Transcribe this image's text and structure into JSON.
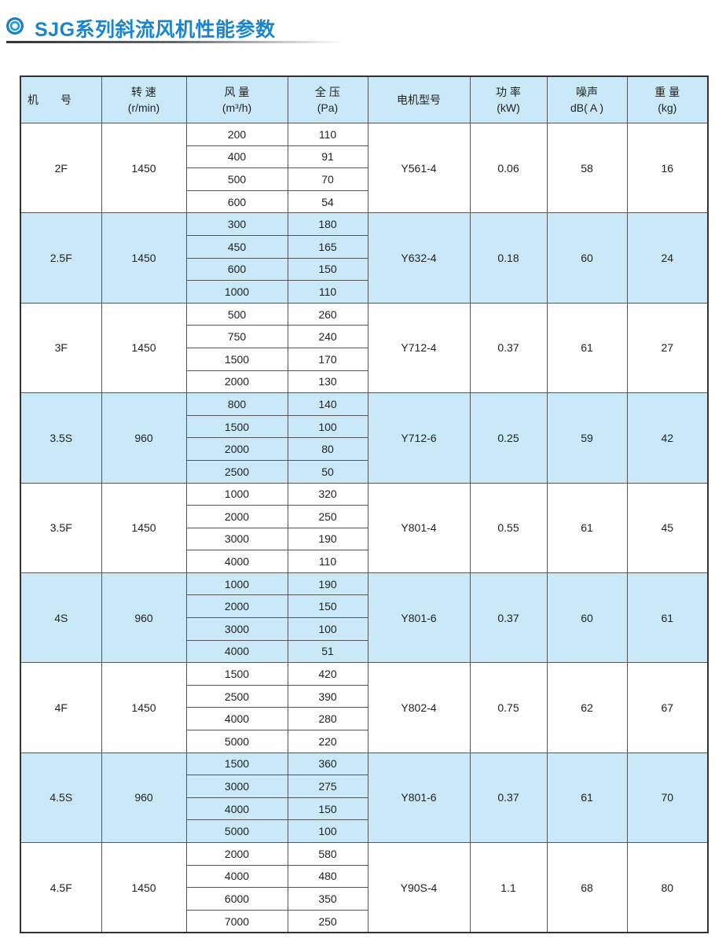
{
  "title": "SJG系列斜流风机性能参数",
  "colors": {
    "title": "#1a85cc",
    "header_bg": "#c9e9f8",
    "alt_row_bg": "#c9e9f8"
  },
  "table": {
    "headers": [
      {
        "line1": "机　　号",
        "line2": ""
      },
      {
        "line1": "转 速",
        "line2": "(r/min)"
      },
      {
        "line1": "风 量",
        "line2": "(m³/h)"
      },
      {
        "line1": "全 压",
        "line2": "(Pa)"
      },
      {
        "line1": "电机型号",
        "line2": ""
      },
      {
        "line1": "功 率",
        "line2": "(kW)"
      },
      {
        "line1": "噪声",
        "line2": "dB( A )"
      },
      {
        "line1": "重 量",
        "line2": "(kg)"
      }
    ],
    "groups": [
      {
        "model": "2F",
        "speed": "1450",
        "airflow": [
          "200",
          "400",
          "500",
          "600"
        ],
        "pressure": [
          "110",
          "91",
          "70",
          "54"
        ],
        "motor": "Y561-4",
        "power": "0.06",
        "noise": "58",
        "weight": "16"
      },
      {
        "model": "2.5F",
        "speed": "1450",
        "airflow": [
          "300",
          "450",
          "600",
          "1000"
        ],
        "pressure": [
          "180",
          "165",
          "150",
          "110"
        ],
        "motor": "Y632-4",
        "power": "0.18",
        "noise": "60",
        "weight": "24"
      },
      {
        "model": "3F",
        "speed": "1450",
        "airflow": [
          "500",
          "750",
          "1500",
          "2000"
        ],
        "pressure": [
          "260",
          "240",
          "170",
          "130"
        ],
        "motor": "Y712-4",
        "power": "0.37",
        "noise": "61",
        "weight": "27"
      },
      {
        "model": "3.5S",
        "speed": "960",
        "airflow": [
          "800",
          "1500",
          "2000",
          "2500"
        ],
        "pressure": [
          "140",
          "100",
          "80",
          "50"
        ],
        "motor": "Y712-6",
        "power": "0.25",
        "noise": "59",
        "weight": "42"
      },
      {
        "model": "3.5F",
        "speed": "1450",
        "airflow": [
          "1000",
          "2000",
          "3000",
          "4000"
        ],
        "pressure": [
          "320",
          "250",
          "190",
          "110"
        ],
        "motor": "Y801-4",
        "power": "0.55",
        "noise": "61",
        "weight": "45"
      },
      {
        "model": "4S",
        "speed": "960",
        "airflow": [
          "1000",
          "2000",
          "3000",
          "4000"
        ],
        "pressure": [
          "190",
          "150",
          "100",
          "51"
        ],
        "motor": "Y801-6",
        "power": "0.37",
        "noise": "60",
        "weight": "61"
      },
      {
        "model": "4F",
        "speed": "1450",
        "airflow": [
          "1500",
          "2500",
          "4000",
          "5000"
        ],
        "pressure": [
          "420",
          "390",
          "280",
          "220"
        ],
        "motor": "Y802-4",
        "power": "0.75",
        "noise": "62",
        "weight": "67"
      },
      {
        "model": "4.5S",
        "speed": "960",
        "airflow": [
          "1500",
          "3000",
          "4000",
          "5000"
        ],
        "pressure": [
          "360",
          "275",
          "150",
          "100"
        ],
        "motor": "Y801-6",
        "power": "0.37",
        "noise": "61",
        "weight": "70"
      },
      {
        "model": "4.5F",
        "speed": "1450",
        "airflow": [
          "2000",
          "4000",
          "6000",
          "7000"
        ],
        "pressure": [
          "580",
          "480",
          "350",
          "250"
        ],
        "motor": "Y90S-4",
        "power": "1.1",
        "noise": "68",
        "weight": "80"
      }
    ]
  }
}
